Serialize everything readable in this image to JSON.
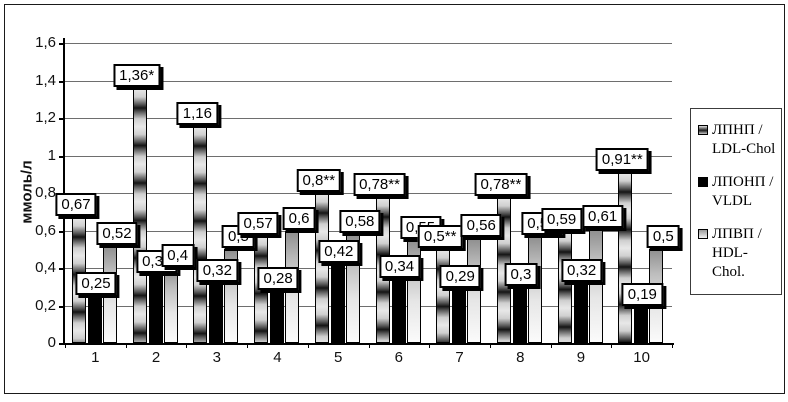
{
  "chart_data": {
    "type": "bar",
    "title": "",
    "ylabel": "ммоль/л",
    "xlabel": "",
    "ylim": [
      0,
      1.6
    ],
    "ytick_step": 0.2,
    "grid": true,
    "legend_position": "right",
    "decimal_separator": ",",
    "categories": [
      "1",
      "2",
      "3",
      "4",
      "5",
      "6",
      "7",
      "8",
      "9",
      "10"
    ],
    "yticks": [
      "0",
      "0,2",
      "0,4",
      "0,6",
      "0,8",
      "1",
      "1,2",
      "1,4",
      "1,6"
    ],
    "series": [
      {
        "name": "ЛПНП / LDL-Chol",
        "swatch": "textured-gray",
        "values": [
          0.67,
          1.36,
          1.16,
          0.57,
          0.8,
          0.78,
          0.5,
          0.78,
          0.59,
          0.91
        ],
        "labels": [
          "0,67",
          "1,36*",
          "1,16",
          "0,57",
          "0,8**",
          "0,78**",
          "0,5**",
          "0,78**",
          "0,59",
          "0,91**"
        ]
      },
      {
        "name": "ЛПОНП / VLDL",
        "swatch": "black",
        "values": [
          0.25,
          0.37,
          0.32,
          0.28,
          0.42,
          0.34,
          0.29,
          0.3,
          0.32,
          0.19
        ],
        "labels": [
          "0,25",
          "0,37",
          "0,32",
          "0,28",
          "0,42",
          "0,34",
          "0,29",
          "0,3",
          "0,32",
          "0,19"
        ]
      },
      {
        "name": "ЛПВП / HDL-Chol.",
        "swatch": "light-gray-gradient",
        "values": [
          0.52,
          0.4,
          0.5,
          0.6,
          0.58,
          0.55,
          0.56,
          0.57,
          0.61,
          0.5
        ],
        "labels": [
          "0,52",
          "0,4",
          "0,5",
          "0,6",
          "0,58",
          "0,55",
          "0,56",
          "0,57",
          "0,61",
          "0,5"
        ]
      }
    ]
  }
}
